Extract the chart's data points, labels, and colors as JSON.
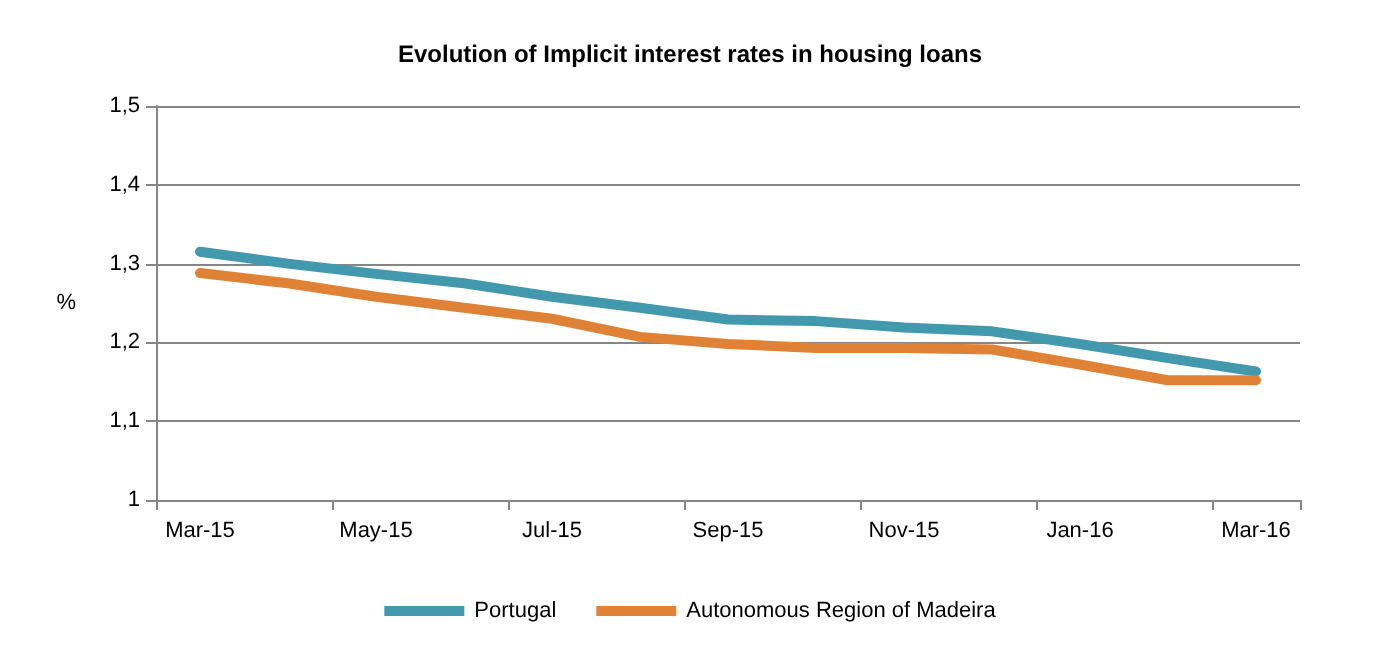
{
  "chart_data": {
    "type": "line",
    "title": "Evolution of Implicit interest rates in housing loans",
    "ylabel": "%",
    "categories": [
      "Mar-15",
      null,
      "May-15",
      null,
      "Jul-15",
      null,
      "Sep-15",
      null,
      "Nov-15",
      null,
      "Jan-16",
      null,
      "Mar-16"
    ],
    "series": [
      {
        "name": "Portugal",
        "color": "#4298ad",
        "values": [
          1.315,
          1.3,
          1.287,
          1.275,
          1.258,
          1.244,
          1.229,
          1.227,
          1.219,
          1.214,
          1.198,
          1.18,
          1.163
        ]
      },
      {
        "name": "Autonomous Region of Madeira",
        "color": "#e08236",
        "values": [
          1.288,
          1.275,
          1.258,
          1.244,
          1.23,
          1.207,
          1.198,
          1.193,
          1.193,
          1.191,
          1.172,
          1.152,
          1.152
        ]
      }
    ],
    "ylim": [
      1,
      1.5
    ],
    "yticks": [
      {
        "value": 1,
        "label": "1"
      },
      {
        "value": 1.1,
        "label": "1,1"
      },
      {
        "value": 1.2,
        "label": "1,2"
      },
      {
        "value": 1.3,
        "label": "1,3"
      },
      {
        "value": 1.4,
        "label": "1,4"
      },
      {
        "value": 1.5,
        "label": "1,5"
      }
    ],
    "grid": "y",
    "legend": "bottom",
    "marker": "none",
    "line_style": "solid"
  }
}
